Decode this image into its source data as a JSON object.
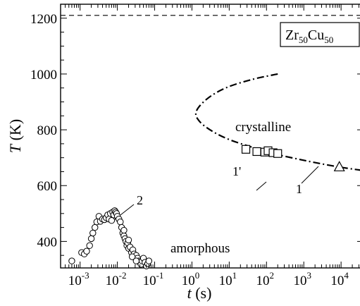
{
  "chart_data": {
    "type": "scatter",
    "title": "",
    "x_scale": "log",
    "xlim": [
      0.0003,
      40000
    ],
    "ylim": [
      305,
      1250
    ],
    "grid": false,
    "legend": "none",
    "x_ticks": [
      {
        "value": 0.001,
        "base": "10",
        "exp": "-3"
      },
      {
        "value": 0.01,
        "base": "10",
        "exp": "-2"
      },
      {
        "value": 0.1,
        "base": "10",
        "exp": "-1"
      },
      {
        "value": 1,
        "base": "10",
        "exp": "0"
      },
      {
        "value": 10,
        "base": "10",
        "exp": "1"
      },
      {
        "value": 100,
        "base": "10",
        "exp": "2"
      },
      {
        "value": 1000,
        "base": "10",
        "exp": "3"
      },
      {
        "value": 10000,
        "base": "10",
        "exp": "4"
      }
    ],
    "y_ticks": [
      {
        "value": 400,
        "label": "400"
      },
      {
        "value": 600,
        "label": "600"
      },
      {
        "value": 800,
        "label": "800"
      },
      {
        "value": 1000,
        "label": "1000"
      },
      {
        "value": 1200,
        "label": "1200"
      }
    ],
    "xlabel": {
      "var": "t",
      "unit": " (s)"
    },
    "ylabel": {
      "var": "T",
      "unit": " (K)"
    },
    "annotations": {
      "composition": {
        "base1": "Zr",
        "sub1": "50",
        "base2": "Cu",
        "sub2": "50"
      },
      "crystalline": "crystalline",
      "amorphous": "amorphous",
      "label_1": "1",
      "label_1p": "1'",
      "label_2": "2"
    },
    "melting_line": {
      "y": 1210,
      "style": "dashed"
    },
    "curve_1": {
      "style": "dash-dot",
      "points": [
        {
          "x": 200,
          "y": 1000
        },
        {
          "x": 40,
          "y": 980
        },
        {
          "x": 8,
          "y": 950
        },
        {
          "x": 2.5,
          "y": 910
        },
        {
          "x": 1.3,
          "y": 865
        },
        {
          "x": 1.6,
          "y": 830
        },
        {
          "x": 3.5,
          "y": 795
        },
        {
          "x": 10,
          "y": 765
        },
        {
          "x": 40,
          "y": 738
        },
        {
          "x": 150,
          "y": 715
        },
        {
          "x": 700,
          "y": 695
        },
        {
          "x": 3000,
          "y": 678
        },
        {
          "x": 12000,
          "y": 664
        },
        {
          "x": 35000,
          "y": 655
        }
      ]
    },
    "squares": [
      {
        "x": 28,
        "y": 730
      },
      {
        "x": 55,
        "y": 722
      },
      {
        "x": 90,
        "y": 720
      },
      {
        "x": 110,
        "y": 725
      },
      {
        "x": 150,
        "y": 718
      },
      {
        "x": 200,
        "y": 715
      }
    ],
    "triangle": {
      "x": 9000,
      "y": 668
    },
    "circles": [
      {
        "x": 0.0006,
        "y": 330
      },
      {
        "x": 0.0011,
        "y": 360
      },
      {
        "x": 0.0013,
        "y": 355
      },
      {
        "x": 0.0015,
        "y": 365
      },
      {
        "x": 0.0018,
        "y": 385
      },
      {
        "x": 0.002,
        "y": 410
      },
      {
        "x": 0.0022,
        "y": 430
      },
      {
        "x": 0.0025,
        "y": 450
      },
      {
        "x": 0.0028,
        "y": 470
      },
      {
        "x": 0.0032,
        "y": 490
      },
      {
        "x": 0.0035,
        "y": 472
      },
      {
        "x": 0.004,
        "y": 480
      },
      {
        "x": 0.0045,
        "y": 478
      },
      {
        "x": 0.005,
        "y": 485
      },
      {
        "x": 0.0055,
        "y": 495
      },
      {
        "x": 0.006,
        "y": 480
      },
      {
        "x": 0.0065,
        "y": 500
      },
      {
        "x": 0.007,
        "y": 475
      },
      {
        "x": 0.0075,
        "y": 505
      },
      {
        "x": 0.008,
        "y": 495
      },
      {
        "x": 0.0085,
        "y": 510
      },
      {
        "x": 0.009,
        "y": 505
      },
      {
        "x": 0.0095,
        "y": 500
      },
      {
        "x": 0.01,
        "y": 490
      },
      {
        "x": 0.011,
        "y": 480
      },
      {
        "x": 0.012,
        "y": 470
      },
      {
        "x": 0.013,
        "y": 450
      },
      {
        "x": 0.014,
        "y": 430
      },
      {
        "x": 0.015,
        "y": 420
      },
      {
        "x": 0.016,
        "y": 410
      },
      {
        "x": 0.017,
        "y": 400
      },
      {
        "x": 0.018,
        "y": 385
      },
      {
        "x": 0.019,
        "y": 395
      },
      {
        "x": 0.02,
        "y": 375
      },
      {
        "x": 0.022,
        "y": 380
      },
      {
        "x": 0.024,
        "y": 360
      },
      {
        "x": 0.026,
        "y": 370
      },
      {
        "x": 0.028,
        "y": 355
      },
      {
        "x": 0.03,
        "y": 345
      },
      {
        "x": 0.032,
        "y": 350
      },
      {
        "x": 0.035,
        "y": 340
      },
      {
        "x": 0.038,
        "y": 330
      },
      {
        "x": 0.04,
        "y": 325
      },
      {
        "x": 0.043,
        "y": 318
      },
      {
        "x": 0.046,
        "y": 330
      },
      {
        "x": 0.05,
        "y": 340
      },
      {
        "x": 0.055,
        "y": 325
      },
      {
        "x": 0.06,
        "y": 312
      },
      {
        "x": 0.065,
        "y": 320
      },
      {
        "x": 0.07,
        "y": 330
      },
      {
        "x": 0.015,
        "y": 440
      },
      {
        "x": 0.02,
        "y": 405
      },
      {
        "x": 0.025,
        "y": 345
      },
      {
        "x": 0.032,
        "y": 330
      }
    ]
  }
}
